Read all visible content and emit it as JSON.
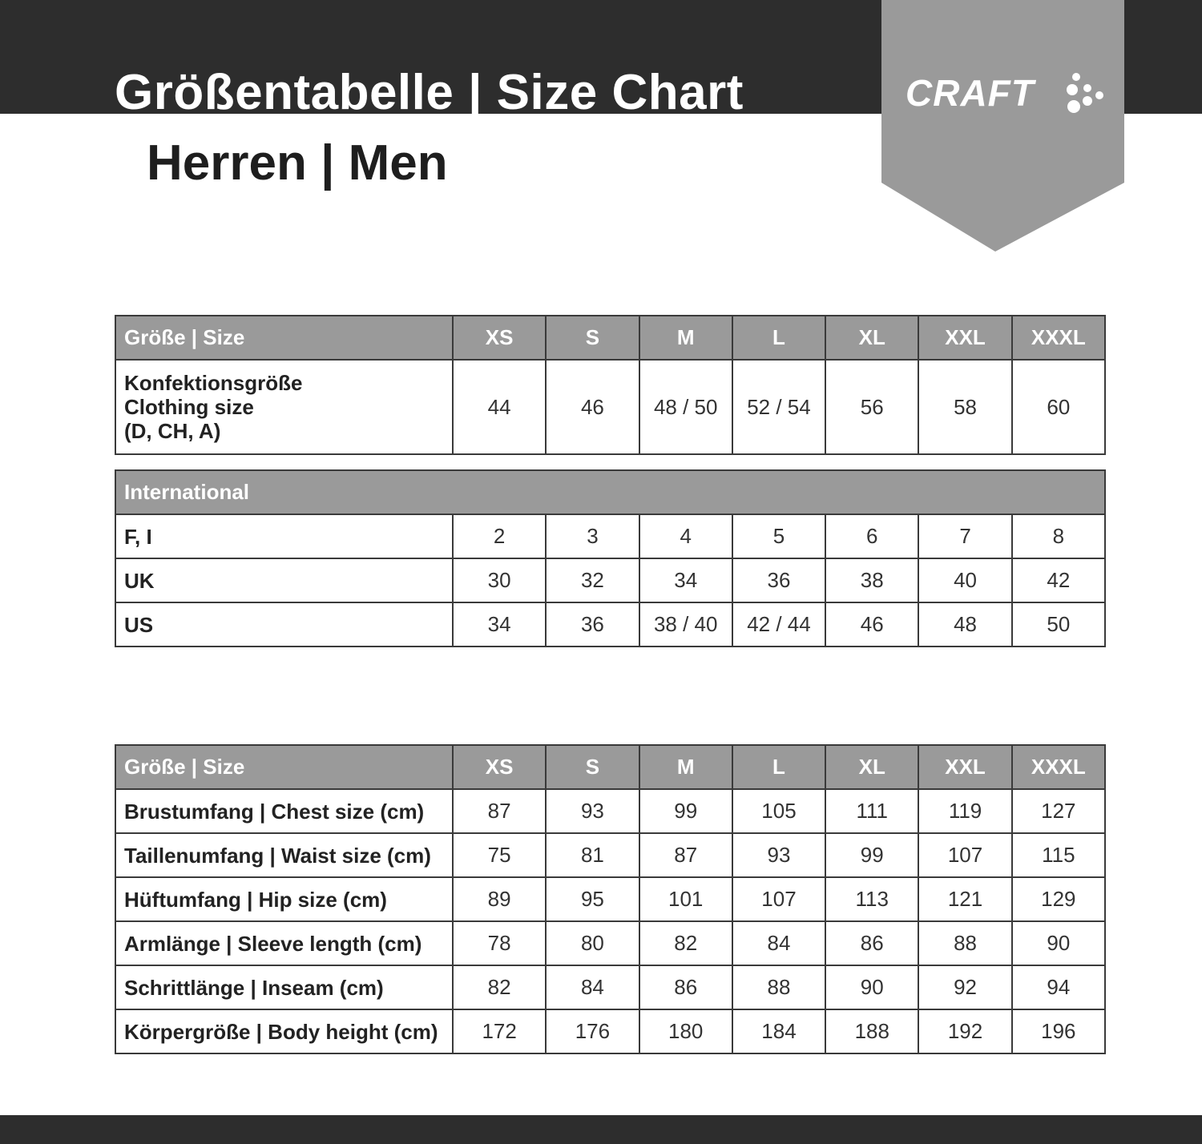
{
  "header": {
    "title": "Größentabelle | Size Chart",
    "subtitle": "Herren | Men",
    "logo": "CRAFT",
    "colors": {
      "dark": "#2d2d2d",
      "banner": "#9a9a9a",
      "header_row": "#9a9a9a"
    }
  },
  "sizes": [
    "XS",
    "S",
    "M",
    "L",
    "XL",
    "XXL",
    "XXXL"
  ],
  "table1": {
    "header_label": "Größe | Size",
    "row_label_lines": [
      "Konfektionsgröße",
      "Clothing size",
      "(D, CH, A)"
    ],
    "values": [
      "44",
      "46",
      "48 / 50",
      "52 / 54",
      "56",
      "58",
      "60"
    ]
  },
  "table2": {
    "header_label": "International",
    "rows": [
      {
        "label": "F, I",
        "values": [
          "2",
          "3",
          "4",
          "5",
          "6",
          "7",
          "8"
        ]
      },
      {
        "label": "UK",
        "values": [
          "30",
          "32",
          "34",
          "36",
          "38",
          "40",
          "42"
        ]
      },
      {
        "label": "US",
        "values": [
          "34",
          "36",
          "38 / 40",
          "42 / 44",
          "46",
          "48",
          "50"
        ]
      }
    ]
  },
  "table3": {
    "header_label": "Größe | Size",
    "rows": [
      {
        "label": "Brustumfang | Chest size (cm)",
        "values": [
          "87",
          "93",
          "99",
          "105",
          "111",
          "119",
          "127"
        ]
      },
      {
        "label": "Taillenumfang | Waist size (cm)",
        "values": [
          "75",
          "81",
          "87",
          "93",
          "99",
          "107",
          "115"
        ]
      },
      {
        "label": "Hüftumfang | Hip size (cm)",
        "values": [
          "89",
          "95",
          "101",
          "107",
          "113",
          "121",
          "129"
        ]
      },
      {
        "label": "Armlänge | Sleeve length (cm)",
        "values": [
          "78",
          "80",
          "82",
          "84",
          "86",
          "88",
          "90"
        ]
      },
      {
        "label": "Schrittlänge | Inseam (cm)",
        "values": [
          "82",
          "84",
          "86",
          "88",
          "90",
          "92",
          "94"
        ]
      },
      {
        "label": "Körpergröße | Body height (cm)",
        "values": [
          "172",
          "176",
          "180",
          "184",
          "188",
          "192",
          "196"
        ]
      }
    ]
  }
}
